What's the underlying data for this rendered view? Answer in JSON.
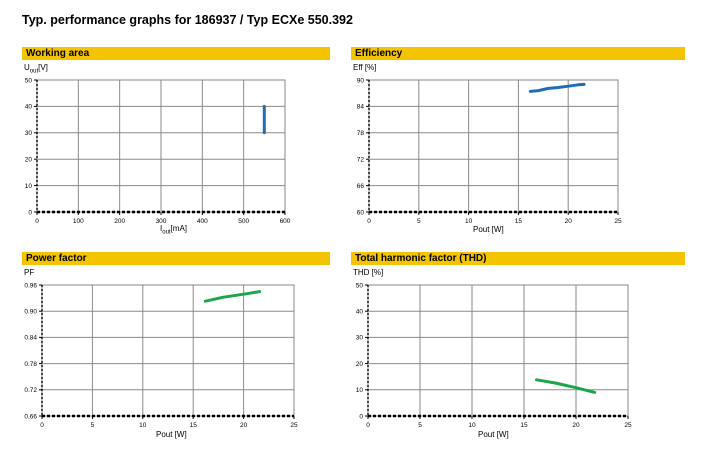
{
  "page": {
    "title": "Typ. performance graphs for 186937 / Typ ECXe 550.392"
  },
  "chart_data": [
    {
      "type": "line",
      "title": "Working area",
      "ylabel_main": "U",
      "ylabel_sub": "out",
      "ylabel_unit": "[V]",
      "xlabel_main": "I",
      "xlabel_sub": "out",
      "xlabel_unit": "[mA]",
      "xlim": [
        0,
        600
      ],
      "ylim": [
        0,
        50
      ],
      "xticks": [
        0,
        100,
        200,
        300,
        400,
        500,
        600
      ],
      "yticks": [
        0,
        10,
        20,
        30,
        40,
        50
      ],
      "ytick_labels": [
        "0",
        "10",
        "20",
        "30",
        "40",
        "50"
      ],
      "grid": true,
      "series": [
        {
          "color": "#1f6eb5",
          "x": [
            550,
            550
          ],
          "y": [
            30,
            40
          ]
        }
      ]
    },
    {
      "type": "line",
      "title": "Efficiency",
      "ylabel": "Eff [%]",
      "xlabel": "Pout [W]",
      "xlim": [
        0,
        25
      ],
      "ylim": [
        60,
        90
      ],
      "xticks": [
        0,
        5,
        10,
        15,
        20,
        25
      ],
      "yticks": [
        60,
        66,
        72,
        78,
        84,
        90
      ],
      "ytick_labels": [
        "60",
        "66",
        "72",
        "78",
        "84",
        "90"
      ],
      "grid": true,
      "series": [
        {
          "color": "#1f6eb5",
          "x": [
            16.2,
            17.0,
            18.0,
            19.0,
            20.0,
            21.0,
            21.6
          ],
          "y": [
            87.4,
            87.6,
            88.1,
            88.3,
            88.6,
            88.9,
            89.0
          ]
        }
      ]
    },
    {
      "type": "line",
      "title": "Power factor",
      "ylabel": "PF",
      "xlabel": "Pout [W]",
      "xlim": [
        0,
        25
      ],
      "ylim": [
        0.66,
        0.96
      ],
      "xticks": [
        0,
        5,
        10,
        15,
        20,
        25
      ],
      "yticks": [
        0.66,
        0.72,
        0.78,
        0.84,
        0.9,
        0.96
      ],
      "ytick_labels": [
        "0.66",
        "0.72",
        "0.78",
        "0.84",
        "0.90",
        "0.96"
      ],
      "grid": true,
      "series": [
        {
          "color": "#1aa64a",
          "x": [
            16.2,
            18.0,
            20.0,
            21.6
          ],
          "y": [
            0.923,
            0.932,
            0.939,
            0.945
          ]
        }
      ]
    },
    {
      "type": "line",
      "title": "Total harmonic factor (THD)",
      "ylabel": "THD [%]",
      "xlabel": "Pout [W]",
      "xlim": [
        0,
        25
      ],
      "ylim": [
        0,
        50
      ],
      "xticks": [
        0,
        5,
        10,
        15,
        20,
        25
      ],
      "yticks": [
        0,
        10,
        20,
        30,
        40,
        50
      ],
      "ytick_labels": [
        "0",
        "10",
        "20",
        "30",
        "40",
        "50"
      ],
      "grid": true,
      "series": [
        {
          "color": "#1aa64a",
          "x": [
            16.2,
            18.0,
            20.0,
            21.8
          ],
          "y": [
            13.8,
            12.6,
            10.8,
            9.0
          ]
        }
      ]
    }
  ]
}
